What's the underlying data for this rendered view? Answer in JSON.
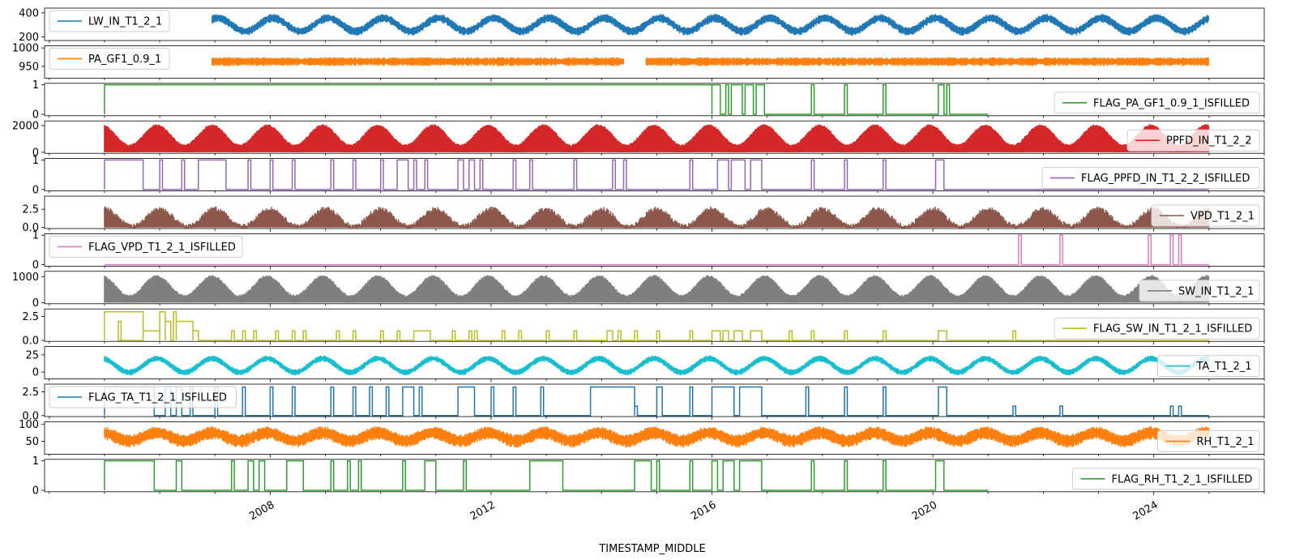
{
  "chart_data": {
    "type": "line",
    "xlabel": "TIMESTAMP_MIDDLE",
    "x_tick_labels": [
      "2008",
      "2012",
      "2016",
      "2020",
      "2024"
    ],
    "x_range": [
      "2003-12-01",
      "2026-01-01"
    ],
    "data_span": [
      "2005-01-01",
      "2024-12-31"
    ],
    "grid": false,
    "series": [
      {
        "name": "LW_IN_T1_2_1",
        "color": "#1f77b4",
        "kind": "seasonal",
        "ylim": [
          170,
          440
        ],
        "yticks": [
          200,
          400
        ],
        "mean": 305,
        "amp": 55,
        "noise": 40,
        "phase": 0.55,
        "start": 2006.95,
        "end": 2025.0,
        "legend": "upper left"
      },
      {
        "name": "PA_GF1_0.9_1",
        "color": "#ff7f0e",
        "kind": "noise",
        "ylim": [
          918,
          1006
        ],
        "yticks": [
          950,
          1000
        ],
        "mean": 964,
        "amp": 0,
        "noise": 13,
        "phase": 0,
        "start": 2006.95,
        "end": 2025.0,
        "gap": [
          2014.4,
          2014.8
        ],
        "legend": "upper left"
      },
      {
        "name": "FLAG_PA_GF1_0.9_1_ISFILLED",
        "color": "#2ca02c",
        "kind": "flag",
        "ylim": [
          -0.05,
          1.05
        ],
        "yticks": [
          0,
          1
        ],
        "start": 2005.0,
        "end": 2021.0,
        "blocks": [
          [
            2005.0,
            2016.0,
            1
          ],
          [
            2016.0,
            2016.15,
            1
          ],
          [
            2016.25,
            2016.3,
            1
          ],
          [
            2016.35,
            2016.55,
            1
          ],
          [
            2016.6,
            2016.75,
            1
          ],
          [
            2016.8,
            2016.95,
            1
          ],
          [
            2017.8,
            2017.85,
            1
          ],
          [
            2018.4,
            2018.45,
            1
          ],
          [
            2019.1,
            2019.15,
            1
          ],
          [
            2020.1,
            2020.2,
            1
          ],
          [
            2020.25,
            2020.3,
            1
          ]
        ],
        "legend": "lower right"
      },
      {
        "name": "PPFD_IN_T1_2_2",
        "color": "#d62728",
        "kind": "envelope",
        "ylim": [
          -80,
          2350
        ],
        "yticks": [
          0,
          2000
        ],
        "mean": 1300,
        "amp": 750,
        "noise": 120,
        "phase": 0.45,
        "start": 2005.0,
        "end": 2025.0,
        "legend": "lower right"
      },
      {
        "name": "FLAG_PPFD_IN_T1_2_2_ISFILLED",
        "color": "#9467bd",
        "kind": "flag",
        "ylim": [
          -0.05,
          1.05
        ],
        "yticks": [
          0,
          1
        ],
        "start": 2005.0,
        "end": 2025.0,
        "blocks": [
          [
            2005.0,
            2005.7,
            1
          ],
          [
            2006.0,
            2006.05,
            1
          ],
          [
            2006.4,
            2006.45,
            1
          ],
          [
            2006.7,
            2007.2,
            1
          ],
          [
            2007.6,
            2007.65,
            1
          ],
          [
            2008.0,
            2008.05,
            1
          ],
          [
            2008.4,
            2008.45,
            1
          ],
          [
            2009.1,
            2009.15,
            1
          ],
          [
            2009.5,
            2009.55,
            1
          ],
          [
            2010.0,
            2010.05,
            1
          ],
          [
            2010.3,
            2010.5,
            1
          ],
          [
            2010.6,
            2010.65,
            1
          ],
          [
            2010.8,
            2010.85,
            1
          ],
          [
            2011.4,
            2011.5,
            1
          ],
          [
            2011.6,
            2011.7,
            1
          ],
          [
            2011.8,
            2011.85,
            1
          ],
          [
            2012.4,
            2012.45,
            1
          ],
          [
            2012.7,
            2012.75,
            1
          ],
          [
            2013.5,
            2013.55,
            1
          ],
          [
            2014.2,
            2014.25,
            1
          ],
          [
            2014.4,
            2014.45,
            1
          ],
          [
            2015.6,
            2015.65,
            1
          ],
          [
            2016.1,
            2016.3,
            1
          ],
          [
            2016.35,
            2016.6,
            1
          ],
          [
            2016.7,
            2016.9,
            1
          ],
          [
            2017.8,
            2017.85,
            1
          ],
          [
            2018.4,
            2018.45,
            1
          ],
          [
            2019.1,
            2019.15,
            1
          ],
          [
            2020.05,
            2020.2,
            1
          ]
        ],
        "legend": "lower right"
      },
      {
        "name": "VPD_T1_2_1",
        "color": "#8c564b",
        "kind": "envelope",
        "ylim": [
          -0.15,
          4.3
        ],
        "yticks": [
          0.0,
          2.5
        ],
        "ytick_labels": [
          "0.0",
          "2.5"
        ],
        "mean": 1.4,
        "amp": 1.2,
        "noise": 0.6,
        "phase": 0.5,
        "start": 2005.0,
        "end": 2025.0,
        "legend": "lower right"
      },
      {
        "name": "FLAG_VPD_T1_2_1_ISFILLED",
        "color": "#e377c2",
        "kind": "flag",
        "ylim": [
          -0.05,
          1.05
        ],
        "yticks": [
          0,
          1
        ],
        "start": 2005.0,
        "end": 2025.0,
        "blocks": [
          [
            2021.55,
            2021.6,
            1
          ],
          [
            2022.3,
            2022.35,
            1
          ],
          [
            2023.9,
            2023.95,
            1
          ],
          [
            2024.3,
            2024.35,
            1
          ],
          [
            2024.45,
            2024.5,
            1
          ]
        ],
        "legend": "upper left"
      },
      {
        "name": "SW_IN_T1_2_1",
        "color": "#7f7f7f",
        "kind": "envelope",
        "ylim": [
          -40,
          1200
        ],
        "yticks": [
          0,
          1000
        ],
        "mean": 650,
        "amp": 380,
        "noise": 70,
        "phase": 0.45,
        "start": 2005.0,
        "end": 2025.0,
        "legend": "lower right"
      },
      {
        "name": "FLAG_SW_IN_T1_2_1_ISFILLED",
        "color": "#bcbd22",
        "kind": "flag",
        "ylim": [
          -0.1,
          3.3
        ],
        "yticks": [
          0.0,
          2.5
        ],
        "ytick_labels": [
          "0.0",
          "2.5"
        ],
        "start": 2005.0,
        "end": 2025.0,
        "blocks": [
          [
            2005.0,
            2005.7,
            3
          ],
          [
            2005.25,
            2005.3,
            2
          ],
          [
            2005.7,
            2006.0,
            1
          ],
          [
            2006.0,
            2006.1,
            3
          ],
          [
            2006.1,
            2006.2,
            2
          ],
          [
            2006.25,
            2006.3,
            3
          ],
          [
            2006.3,
            2006.6,
            2
          ],
          [
            2006.6,
            2006.7,
            1
          ],
          [
            2007.3,
            2007.35,
            1
          ],
          [
            2007.5,
            2007.55,
            1
          ],
          [
            2007.7,
            2007.75,
            1
          ],
          [
            2008.1,
            2008.15,
            1
          ],
          [
            2008.4,
            2008.45,
            1
          ],
          [
            2008.6,
            2008.65,
            1
          ],
          [
            2009.2,
            2009.25,
            1
          ],
          [
            2009.5,
            2009.55,
            1
          ],
          [
            2010.0,
            2010.05,
            1
          ],
          [
            2010.3,
            2010.35,
            1
          ],
          [
            2010.6,
            2010.9,
            1
          ],
          [
            2011.3,
            2011.35,
            1
          ],
          [
            2011.6,
            2011.65,
            1
          ],
          [
            2011.7,
            2011.75,
            1
          ],
          [
            2012.2,
            2012.25,
            1
          ],
          [
            2012.5,
            2012.55,
            1
          ],
          [
            2013.0,
            2013.05,
            1
          ],
          [
            2013.5,
            2013.55,
            1
          ],
          [
            2014.1,
            2014.2,
            1
          ],
          [
            2014.3,
            2014.35,
            1
          ],
          [
            2014.6,
            2014.65,
            1
          ],
          [
            2015.0,
            2015.05,
            1
          ],
          [
            2015.6,
            2015.65,
            1
          ],
          [
            2016.0,
            2016.15,
            1
          ],
          [
            2016.2,
            2016.3,
            1
          ],
          [
            2016.4,
            2016.55,
            1
          ],
          [
            2016.7,
            2016.9,
            1
          ],
          [
            2017.4,
            2017.45,
            1
          ],
          [
            2017.8,
            2017.85,
            1
          ],
          [
            2018.4,
            2018.45,
            1
          ],
          [
            2019.1,
            2019.15,
            1
          ],
          [
            2020.1,
            2020.25,
            1
          ],
          [
            2021.45,
            2021.5,
            1
          ]
        ],
        "legend": "lower right"
      },
      {
        "name": "TA_T1_2_1",
        "color": "#17becf",
        "kind": "seasonal",
        "ylim": [
          -10,
          37
        ],
        "yticks": [
          0,
          25
        ],
        "mean": 10,
        "amp": 10,
        "noise": 5,
        "phase": 0.45,
        "start": 2005.0,
        "end": 2025.0,
        "legend": "lower right"
      },
      {
        "name": "FLAG_TA_T1_2_1_ISFILLED",
        "color": "#1f77b4",
        "kind": "flag",
        "ylim": [
          -0.1,
          3.3
        ],
        "yticks": [
          0.0,
          2.5
        ],
        "ytick_labels": [
          "0.0",
          "2.5"
        ],
        "start": 2005.0,
        "end": 2025.0,
        "blocks": [
          [
            2005.0,
            2005.9,
            3
          ],
          [
            2005.9,
            2006.1,
            0
          ],
          [
            2006.1,
            2006.2,
            3
          ],
          [
            2006.3,
            2006.4,
            3
          ],
          [
            2006.55,
            2006.6,
            3
          ],
          [
            2007.0,
            2007.05,
            3
          ],
          [
            2007.5,
            2007.55,
            3
          ],
          [
            2008.0,
            2008.05,
            3
          ],
          [
            2008.4,
            2008.45,
            3
          ],
          [
            2009.1,
            2009.15,
            3
          ],
          [
            2009.5,
            2009.55,
            3
          ],
          [
            2009.8,
            2009.85,
            3
          ],
          [
            2010.1,
            2010.15,
            3
          ],
          [
            2010.4,
            2010.6,
            3
          ],
          [
            2010.7,
            2010.75,
            3
          ],
          [
            2011.4,
            2011.7,
            3
          ],
          [
            2012.0,
            2012.05,
            3
          ],
          [
            2012.4,
            2012.45,
            3
          ],
          [
            2012.9,
            2012.95,
            3
          ],
          [
            2013.8,
            2014.6,
            3
          ],
          [
            2014.6,
            2014.65,
            1
          ],
          [
            2015.0,
            2015.1,
            3
          ],
          [
            2015.6,
            2015.65,
            3
          ],
          [
            2016.0,
            2016.4,
            3
          ],
          [
            2016.5,
            2016.9,
            3
          ],
          [
            2017.7,
            2017.75,
            3
          ],
          [
            2018.4,
            2018.45,
            3
          ],
          [
            2019.1,
            2019.15,
            3
          ],
          [
            2020.1,
            2020.25,
            3
          ],
          [
            2021.45,
            2021.5,
            1
          ],
          [
            2022.3,
            2022.35,
            1
          ],
          [
            2024.3,
            2024.35,
            1
          ],
          [
            2024.45,
            2024.5,
            1
          ]
        ],
        "legend": "upper left"
      },
      {
        "name": "RH_T1_2_1",
        "color": "#ff7f0e",
        "kind": "band",
        "ylim": [
          12,
          108
        ],
        "yticks": [
          50,
          100
        ],
        "mean": 65,
        "amp": 12,
        "noise": 22,
        "phase": 0.95,
        "start": 2005.0,
        "end": 2025.0,
        "legend": "lower right"
      },
      {
        "name": "FLAG_RH_T1_2_1_ISFILLED",
        "color": "#2ca02c",
        "kind": "flag",
        "ylim": [
          -0.05,
          1.05
        ],
        "yticks": [
          0,
          1
        ],
        "start": 2005.0,
        "end": 2021.0,
        "blocks": [
          [
            2005.0,
            2005.9,
            1
          ],
          [
            2006.3,
            2006.4,
            1
          ],
          [
            2007.3,
            2007.35,
            1
          ],
          [
            2007.6,
            2007.7,
            1
          ],
          [
            2007.8,
            2007.9,
            1
          ],
          [
            2008.3,
            2008.6,
            1
          ],
          [
            2009.1,
            2009.15,
            1
          ],
          [
            2009.4,
            2009.45,
            1
          ],
          [
            2009.6,
            2009.65,
            1
          ],
          [
            2010.4,
            2010.45,
            1
          ],
          [
            2010.8,
            2011.0,
            1
          ],
          [
            2011.5,
            2011.55,
            1
          ],
          [
            2012.7,
            2013.3,
            1
          ],
          [
            2014.6,
            2014.9,
            1
          ],
          [
            2015.0,
            2015.05,
            1
          ],
          [
            2015.6,
            2015.65,
            1
          ],
          [
            2016.0,
            2016.1,
            1
          ],
          [
            2016.2,
            2016.4,
            1
          ],
          [
            2016.5,
            2016.9,
            1
          ],
          [
            2017.8,
            2017.85,
            1
          ],
          [
            2018.4,
            2018.45,
            1
          ],
          [
            2019.1,
            2019.15,
            1
          ],
          [
            2020.05,
            2020.2,
            1
          ]
        ],
        "legend": "lower right"
      }
    ]
  }
}
